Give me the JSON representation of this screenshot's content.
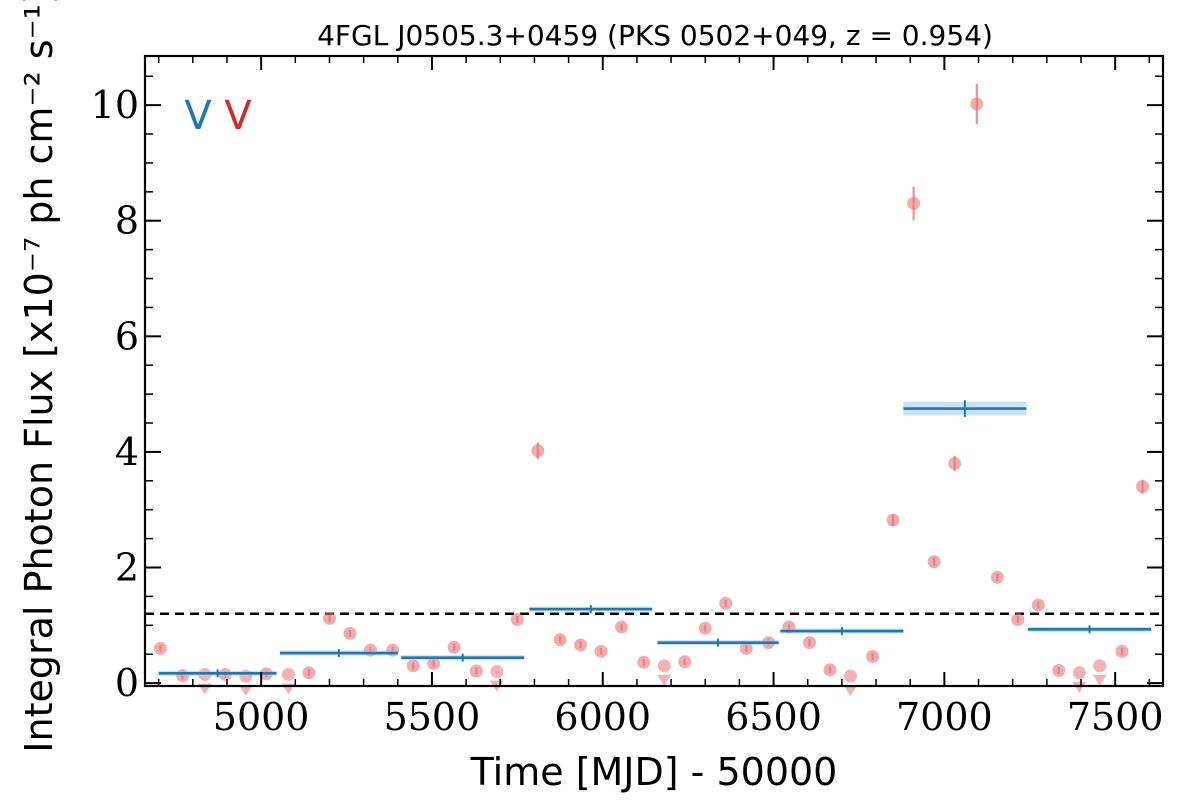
{
  "chart_data": {
    "type": "scatter",
    "title": "4FGL J0505.3+0459 (PKS 0502+049, z = 0.954)",
    "xlabel": "Time [MJD] - 50000",
    "ylabel": "Integral Photon Flux [x10⁻⁷ ph cm⁻² s⁻¹]",
    "xlim": [
      4660,
      7640
    ],
    "ylim": [
      -0.05,
      10.85
    ],
    "x_ticks": [
      5000,
      5500,
      6000,
      6500,
      7000,
      7500
    ],
    "x_tick_labels": [
      "5000",
      "5500",
      "6000",
      "6500",
      "7000",
      "7500"
    ],
    "y_ticks": [
      0,
      2,
      4,
      6,
      8,
      10
    ],
    "y_tick_labels": [
      "0",
      "2",
      "4",
      "6",
      "8",
      "10"
    ],
    "grid": false,
    "legend_markers": [
      {
        "text": "V",
        "color": "#1f77b4"
      },
      {
        "text": "V",
        "color": "#d62728"
      }
    ],
    "reference_line": {
      "y": 1.2,
      "style": "dashed",
      "color": "#000000"
    },
    "series": [
      {
        "color": "#e8757a",
        "kind": "points",
        "points": [
          {
            "x": 4705,
            "y": 0.6
          },
          {
            "x": 4770,
            "y": 0.13
          },
          {
            "x": 4835,
            "y": 0.15,
            "upper_limit": true
          },
          {
            "x": 4895,
            "y": 0.15
          },
          {
            "x": 4955,
            "y": 0.12,
            "upper_limit": true
          },
          {
            "x": 5015,
            "y": 0.16
          },
          {
            "x": 5080,
            "y": 0.15,
            "upper_limit": true
          },
          {
            "x": 5140,
            "y": 0.18
          },
          {
            "x": 5200,
            "y": 1.12
          },
          {
            "x": 5260,
            "y": 0.86
          },
          {
            "x": 5320,
            "y": 0.57
          },
          {
            "x": 5385,
            "y": 0.57
          },
          {
            "x": 5445,
            "y": 0.3
          },
          {
            "x": 5505,
            "y": 0.34
          },
          {
            "x": 5565,
            "y": 0.62
          },
          {
            "x": 5630,
            "y": 0.21
          },
          {
            "x": 5690,
            "y": 0.2,
            "upper_limit": true
          },
          {
            "x": 5750,
            "y": 1.1
          },
          {
            "x": 5810,
            "y": 4.02
          },
          {
            "x": 5875,
            "y": 0.75
          },
          {
            "x": 5935,
            "y": 0.66
          },
          {
            "x": 5995,
            "y": 0.55
          },
          {
            "x": 6055,
            "y": 0.97
          },
          {
            "x": 6120,
            "y": 0.36
          },
          {
            "x": 6180,
            "y": 0.3,
            "upper_limit": true
          },
          {
            "x": 6240,
            "y": 0.37
          },
          {
            "x": 6300,
            "y": 0.95
          },
          {
            "x": 6360,
            "y": 1.38
          },
          {
            "x": 6420,
            "y": 0.6
          },
          {
            "x": 6485,
            "y": 0.7
          },
          {
            "x": 6545,
            "y": 0.97
          },
          {
            "x": 6605,
            "y": 0.7
          },
          {
            "x": 6665,
            "y": 0.23
          },
          {
            "x": 6725,
            "y": 0.12,
            "upper_limit": true
          },
          {
            "x": 6790,
            "y": 0.46
          },
          {
            "x": 6850,
            "y": 2.82
          },
          {
            "x": 6910,
            "y": 8.3
          },
          {
            "x": 6970,
            "y": 2.1
          },
          {
            "x": 7030,
            "y": 3.8
          },
          {
            "x": 7095,
            "y": 10.02
          },
          {
            "x": 7155,
            "y": 1.83
          },
          {
            "x": 7215,
            "y": 1.1
          },
          {
            "x": 7275,
            "y": 1.35
          },
          {
            "x": 7335,
            "y": 0.22
          },
          {
            "x": 7395,
            "y": 0.18,
            "upper_limit": true
          },
          {
            "x": 7455,
            "y": 0.3,
            "upper_limit": true
          },
          {
            "x": 7520,
            "y": 0.55
          },
          {
            "x": 7580,
            "y": 3.4
          }
        ]
      },
      {
        "color": "#1f77b4",
        "kind": "bins",
        "bins": [
          {
            "x0": 4700,
            "x1": 5045,
            "y": 0.17
          },
          {
            "x0": 5055,
            "x1": 5400,
            "y": 0.52
          },
          {
            "x0": 5410,
            "x1": 5770,
            "y": 0.44
          },
          {
            "x0": 5785,
            "x1": 6145,
            "y": 1.28
          },
          {
            "x0": 6160,
            "x1": 6515,
            "y": 0.7
          },
          {
            "x0": 6520,
            "x1": 6880,
            "y": 0.9
          },
          {
            "x0": 6880,
            "x1": 7240,
            "y": 4.75
          },
          {
            "x0": 7245,
            "x1": 7605,
            "y": 0.93
          }
        ]
      }
    ]
  }
}
